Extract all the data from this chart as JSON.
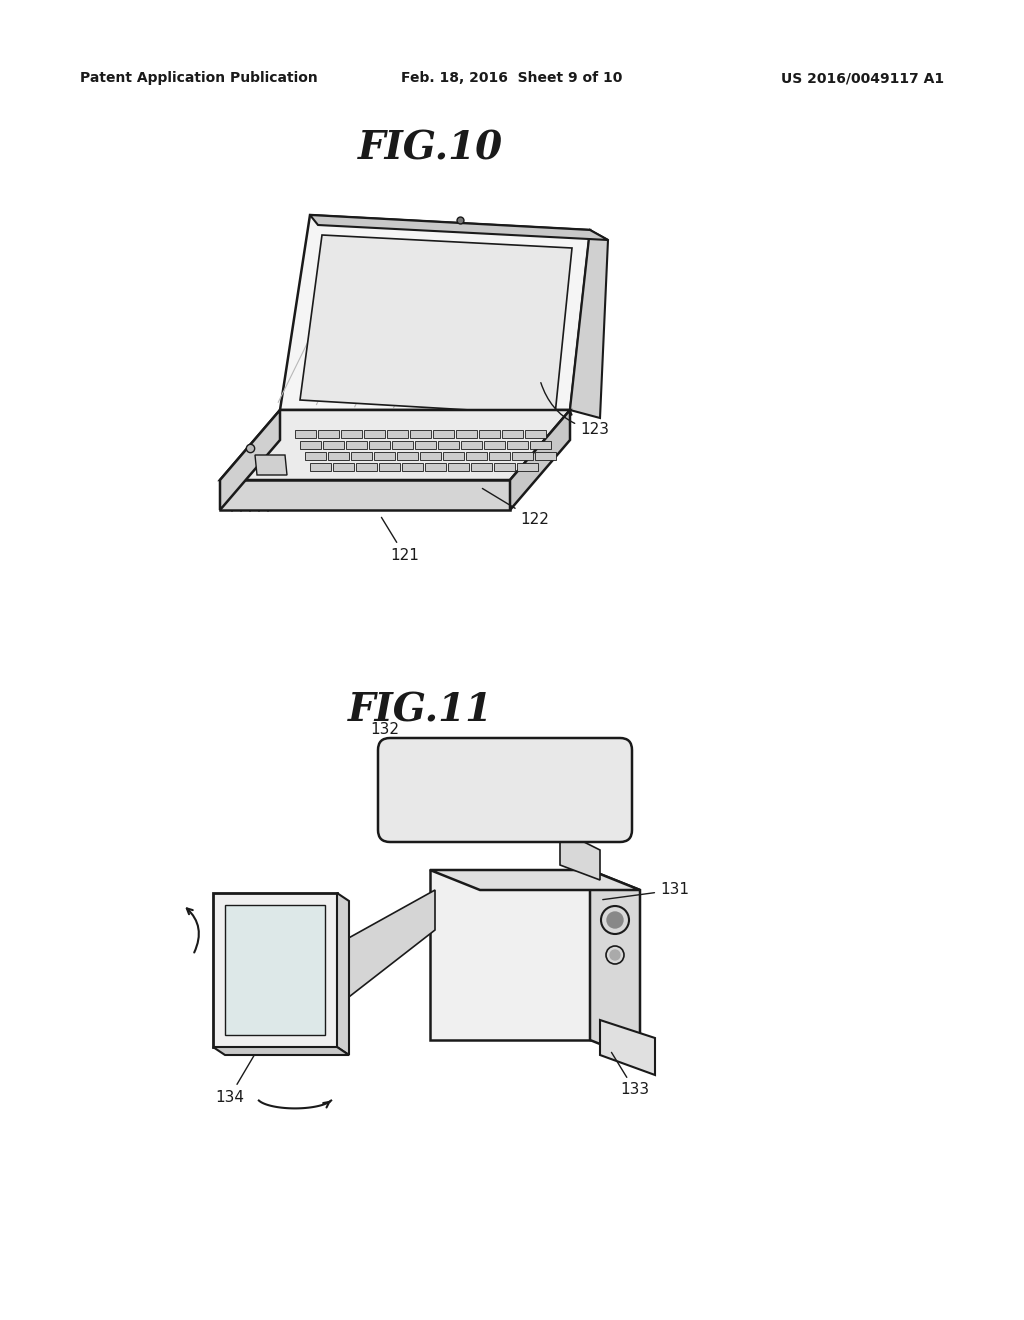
{
  "background_color": "#ffffff",
  "header_left": "Patent Application Publication",
  "header_center": "Feb. 18, 2016  Sheet 9 of 10",
  "header_right": "US 2016/0049117 A1",
  "fig10_title": "FIG.10",
  "fig11_title": "FIG.11",
  "label_121": "121",
  "label_122": "122",
  "label_123": "123",
  "label_131": "131",
  "label_132": "132",
  "label_133": "133",
  "label_134": "134",
  "line_color": "#1a1a1a",
  "text_color": "#1a1a1a",
  "header_fontsize": 10,
  "fig_title_fontsize": 28,
  "label_fontsize": 11
}
